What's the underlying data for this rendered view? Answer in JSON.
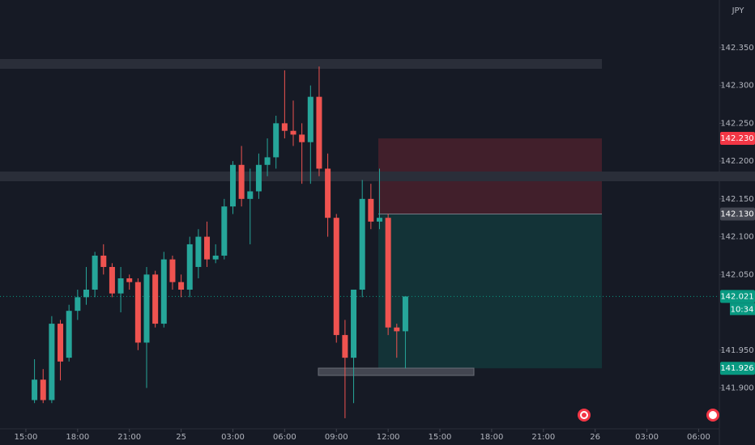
{
  "chart_data": {
    "type": "candlestick",
    "currency": "JPY",
    "countdown": "10:34",
    "x": [
      0.5,
      1,
      1.5,
      2,
      2.5,
      3,
      3.5,
      4,
      4.5,
      5,
      5.5,
      6,
      6.5,
      7,
      7.5,
      8,
      8.5,
      9,
      9.5,
      10,
      10.5,
      11,
      11.5,
      12,
      12.5,
      13,
      13.5,
      14,
      14.5,
      15,
      15.5,
      16,
      16.5,
      17,
      17.5,
      18,
      18.5,
      19,
      19.5,
      20,
      20.5,
      21,
      21.5,
      22
    ],
    "open": [
      141.884,
      141.911,
      141.884,
      141.985,
      141.94,
      142.002,
      142.02,
      142.03,
      142.075,
      142.06,
      142.025,
      142.045,
      142.04,
      141.96,
      142.05,
      141.985,
      142.07,
      142.04,
      142.03,
      142.06,
      142.1,
      142.07,
      142.075,
      142.14,
      142.195,
      142.15,
      142.16,
      142.195,
      142.205,
      142.25,
      142.24,
      142.235,
      142.225,
      142.285,
      142.19,
      142.125,
      141.97,
      141.94,
      142.03,
      142.15,
      142.12,
      142.125,
      141.98,
      141.975
    ],
    "high": [
      141.938,
      141.925,
      141.995,
      141.99,
      142.01,
      142.03,
      142.06,
      142.08,
      142.09,
      142.065,
      142.06,
      142.05,
      142.045,
      142.06,
      142.055,
      142.08,
      142.075,
      142.05,
      142.1,
      142.11,
      142.12,
      142.09,
      142.15,
      142.2,
      142.22,
      142.19,
      142.21,
      142.23,
      142.26,
      142.32,
      142.28,
      142.25,
      142.3,
      142.325,
      142.21,
      142.13,
      141.99,
      142.03,
      142.175,
      142.17,
      142.19,
      142.13,
      141.985,
      142.021
    ],
    "low": [
      141.88,
      141.88,
      141.88,
      141.91,
      141.935,
      141.99,
      142.01,
      142.02,
      142.05,
      142.02,
      142.0,
      142.03,
      141.95,
      141.9,
      141.98,
      141.98,
      142.03,
      142.02,
      142.02,
      142.045,
      142.06,
      142.065,
      142.07,
      142.13,
      142.14,
      142.09,
      142.15,
      142.18,
      142.19,
      142.23,
      142.22,
      142.17,
      142.17,
      142.18,
      142.1,
      141.96,
      141.86,
      141.88,
      142.02,
      142.11,
      142.11,
      141.97,
      141.94,
      141.926
    ],
    "close": [
      141.911,
      141.884,
      141.985,
      141.935,
      142.002,
      142.02,
      142.03,
      142.075,
      142.06,
      142.025,
      142.045,
      142.04,
      141.96,
      142.05,
      141.985,
      142.07,
      142.04,
      142.03,
      142.09,
      142.1,
      142.07,
      142.075,
      142.14,
      142.195,
      142.15,
      142.16,
      142.195,
      142.205,
      142.25,
      142.24,
      142.235,
      142.225,
      142.285,
      142.19,
      142.125,
      141.97,
      141.94,
      142.03,
      142.15,
      142.12,
      142.125,
      141.98,
      141.975,
      142.021
    ],
    "up_color": "#26a69a",
    "down_color": "#ef5350",
    "xlim": [
      -1.5,
      40.2
    ],
    "ylim": [
      141.846,
      142.413
    ],
    "xticks": [
      {
        "value": 0,
        "label": "15:00"
      },
      {
        "value": 3,
        "label": "18:00"
      },
      {
        "value": 6,
        "label": "21:00"
      },
      {
        "value": 9,
        "label": "25"
      },
      {
        "value": 12,
        "label": "03:00"
      },
      {
        "value": 15,
        "label": "06:00"
      },
      {
        "value": 18,
        "label": "09:00"
      },
      {
        "value": 21,
        "label": "12:00"
      },
      {
        "value": 24,
        "label": "15:00"
      },
      {
        "value": 27,
        "label": "18:00"
      },
      {
        "value": 30,
        "label": "21:00"
      },
      {
        "value": 33,
        "label": "26"
      },
      {
        "value": 36,
        "label": "03:00"
      },
      {
        "value": 39,
        "label": "06:00"
      }
    ],
    "yticks": [
      {
        "value": 141.9,
        "label": "141.900"
      },
      {
        "value": 141.95,
        "label": "141.950"
      },
      {
        "value": 142.05,
        "label": "142.050"
      },
      {
        "value": 142.1,
        "label": "142.100"
      },
      {
        "value": 142.15,
        "label": "142.150"
      },
      {
        "value": 142.2,
        "label": "142.200"
      },
      {
        "value": 142.25,
        "label": "142.250"
      },
      {
        "value": 142.3,
        "label": "142.300"
      },
      {
        "value": 142.35,
        "label": "142.350"
      }
    ],
    "price_labels": [
      {
        "value": 142.23,
        "label": "142.230",
        "color": "#f23645"
      },
      {
        "value": 142.13,
        "label": "142.130",
        "color": "#434651"
      },
      {
        "value": 142.021,
        "label": "142.021",
        "color": "#089981"
      },
      {
        "value": 141.926,
        "label": "141.926",
        "color": "#089981"
      }
    ]
  }
}
